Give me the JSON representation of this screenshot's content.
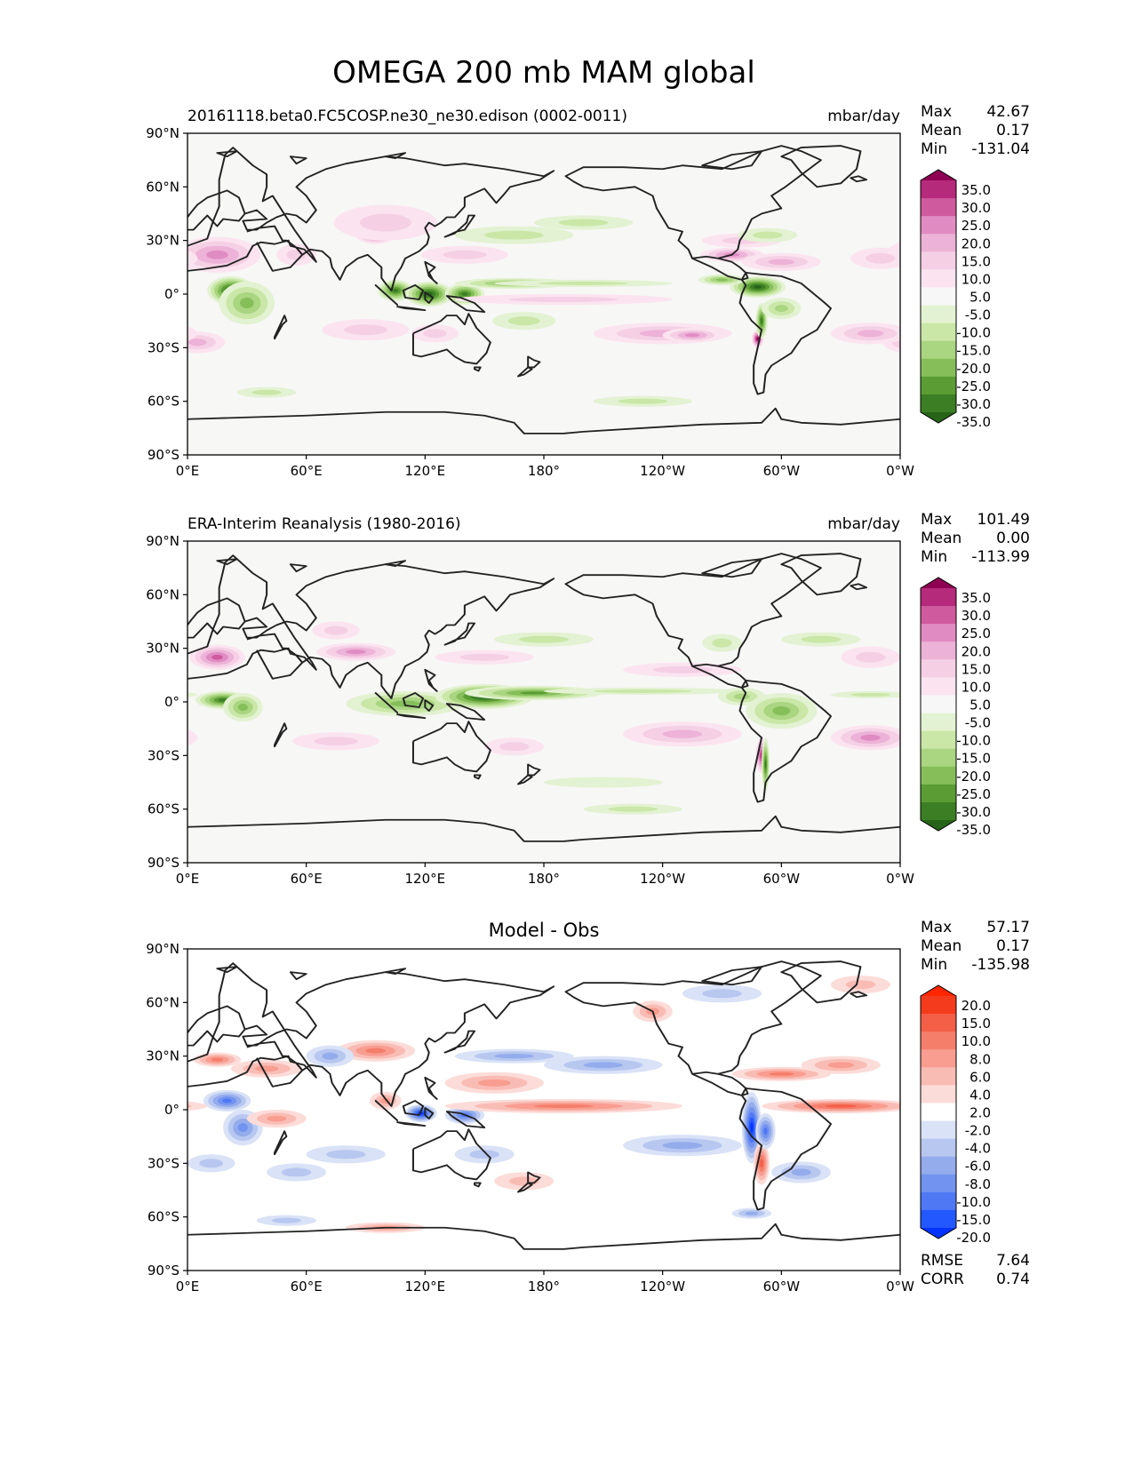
{
  "figure_title": "OMEGA 200 mb MAM global",
  "colors": {
    "land": "#f7f7f6",
    "coast": "#222222",
    "prgn": [
      "#276419",
      "#3c7e24",
      "#5b9d34",
      "#86bf5a",
      "#aad581",
      "#cae7a8",
      "#e3f2d2",
      "#f7f7f7",
      "#fbe4f0",
      "#f5d0e5",
      "#edb2d7",
      "#e08cc3",
      "#cf5a9d",
      "#b52a7b",
      "#8e0152"
    ],
    "bwr": [
      "#0433ff",
      "#2458ff",
      "#4f78f5",
      "#7293ef",
      "#94acec",
      "#b7c7f0",
      "#d9e2f6",
      "#ffffff",
      "#fcdcd8",
      "#f9bcb4",
      "#f89d90",
      "#f57e6b",
      "#f45f47",
      "#f53b1d",
      "#ff2600"
    ]
  },
  "chart_data": [
    {
      "type": "heatmap",
      "panel": "test",
      "title": "20161118.beta0.FC5COSP.ne30_ne30.edison (0002-0011)",
      "units": "mbar/day",
      "stats": {
        "max_label": "Max",
        "max": "42.67",
        "mean_label": "Mean",
        "mean": "0.17",
        "min_label": "Min",
        "min": "-131.04"
      },
      "colorbar_levels": [
        "35.0",
        "30.0",
        "25.0",
        "20.0",
        "15.0",
        "10.0",
        "5.0",
        "-5.0",
        "-10.0",
        "-15.0",
        "-20.0",
        "-25.0",
        "-30.0",
        "-35.0"
      ],
      "xticks": [
        "0°E",
        "60°E",
        "120°E",
        "180°",
        "120°W",
        "60°W",
        "0°W"
      ],
      "yticks": [
        "90°N",
        "60°N",
        "30°N",
        "0°",
        "30°S",
        "60°S",
        "90°S"
      ],
      "x_range_deg": [
        0,
        360
      ],
      "y_range_deg": [
        -90,
        90
      ],
      "blobs": [
        {
          "lon": 20,
          "lat": 24,
          "rx": 14,
          "ry": 6,
          "v": 30
        },
        {
          "lon": 15,
          "lat": 22,
          "rx": 22,
          "ry": 10,
          "v": 18
        },
        {
          "lon": 55,
          "lat": 22,
          "rx": 10,
          "ry": 6,
          "v": 12
        },
        {
          "lon": 22,
          "lat": 2,
          "rx": 12,
          "ry": 8,
          "v": -35
        },
        {
          "lon": 30,
          "lat": -5,
          "rx": 14,
          "ry": 12,
          "v": -22
        },
        {
          "lon": 5,
          "lat": -27,
          "rx": 14,
          "ry": 6,
          "v": 16
        },
        {
          "lon": 95,
          "lat": 33,
          "rx": 10,
          "ry": 5,
          "v": 26
        },
        {
          "lon": 100,
          "lat": 40,
          "rx": 26,
          "ry": 10,
          "v": 10
        },
        {
          "lon": 140,
          "lat": 22,
          "rx": 22,
          "ry": 5,
          "v": 12
        },
        {
          "lon": 105,
          "lat": 2,
          "rx": 9,
          "ry": 6,
          "v": -30
        },
        {
          "lon": 122,
          "lat": 0,
          "rx": 12,
          "ry": 7,
          "v": -35
        },
        {
          "lon": 140,
          "lat": 0,
          "rx": 10,
          "ry": 6,
          "v": -30
        },
        {
          "lon": 165,
          "lat": 6,
          "rx": 30,
          "ry": 3,
          "v": -20
        },
        {
          "lon": 200,
          "lat": 6,
          "rx": 45,
          "ry": 2,
          "v": -12
        },
        {
          "lon": 190,
          "lat": -3,
          "rx": 55,
          "ry": 3,
          "v": 8
        },
        {
          "lon": 90,
          "lat": -20,
          "rx": 22,
          "ry": 6,
          "v": 12
        },
        {
          "lon": 125,
          "lat": -22,
          "rx": 12,
          "ry": 5,
          "v": 8
        },
        {
          "lon": 170,
          "lat": -15,
          "rx": 16,
          "ry": 5,
          "v": -10
        },
        {
          "lon": 240,
          "lat": -22,
          "rx": 35,
          "ry": 6,
          "v": 16
        },
        {
          "lon": 255,
          "lat": -23,
          "rx": 15,
          "ry": 4,
          "v": 22
        },
        {
          "lon": 288,
          "lat": -25,
          "rx": 3,
          "ry": 5,
          "v": 35
        },
        {
          "lon": 290,
          "lat": -15,
          "rx": 3,
          "ry": 10,
          "v": -30
        },
        {
          "lon": 288,
          "lat": 4,
          "rx": 14,
          "ry": 6,
          "v": -35
        },
        {
          "lon": 270,
          "lat": 8,
          "rx": 12,
          "ry": 3,
          "v": -20
        },
        {
          "lon": 300,
          "lat": -8,
          "rx": 10,
          "ry": 6,
          "v": -15
        },
        {
          "lon": 275,
          "lat": 22,
          "rx": 16,
          "ry": 4,
          "v": 18
        },
        {
          "lon": 300,
          "lat": 18,
          "rx": 20,
          "ry": 5,
          "v": 15
        },
        {
          "lon": 280,
          "lat": 30,
          "rx": 20,
          "ry": 4,
          "v": 12
        },
        {
          "lon": 345,
          "lat": -22,
          "rx": 20,
          "ry": 6,
          "v": 16
        },
        {
          "lon": 350,
          "lat": 20,
          "rx": 15,
          "ry": 6,
          "v": 12
        },
        {
          "lon": 165,
          "lat": 33,
          "rx": 30,
          "ry": 5,
          "v": -12
        },
        {
          "lon": 200,
          "lat": 40,
          "rx": 25,
          "ry": 4,
          "v": -8
        },
        {
          "lon": 293,
          "lat": 33,
          "rx": 15,
          "ry": 4,
          "v": -12
        },
        {
          "lon": 40,
          "lat": -55,
          "rx": 15,
          "ry": 3,
          "v": -8
        },
        {
          "lon": 230,
          "lat": -60,
          "rx": 25,
          "ry": 3,
          "v": -8
        }
      ]
    },
    {
      "type": "heatmap",
      "panel": "reference",
      "title": "ERA-Interim Reanalysis (1980-2016)",
      "units": "mbar/day",
      "stats": {
        "max_label": "Max",
        "max": "101.49",
        "mean_label": "Mean",
        "mean": "0.00",
        "min_label": "Min",
        "min": "-113.99"
      },
      "colorbar_levels": [
        "35.0",
        "30.0",
        "25.0",
        "20.0",
        "15.0",
        "10.0",
        "5.0",
        "-5.0",
        "-10.0",
        "-15.0",
        "-20.0",
        "-25.0",
        "-30.0",
        "-35.0"
      ],
      "xticks": [
        "0°E",
        "60°E",
        "120°E",
        "180°",
        "120°W",
        "60°W",
        "0°W"
      ],
      "yticks": [
        "90°N",
        "60°N",
        "30°N",
        "0°",
        "30°S",
        "60°S",
        "90°S"
      ],
      "x_range_deg": [
        0,
        360
      ],
      "y_range_deg": [
        -90,
        90
      ],
      "blobs": [
        {
          "lon": 15,
          "lat": 25,
          "rx": 14,
          "ry": 7,
          "v": 25
        },
        {
          "lon": 18,
          "lat": 1,
          "rx": 14,
          "ry": 5,
          "v": -30
        },
        {
          "lon": 28,
          "lat": -3,
          "rx": 10,
          "ry": 8,
          "v": -18
        },
        {
          "lon": 85,
          "lat": 28,
          "rx": 20,
          "ry": 5,
          "v": 20
        },
        {
          "lon": 75,
          "lat": 40,
          "rx": 12,
          "ry": 5,
          "v": 10
        },
        {
          "lon": 110,
          "lat": -1,
          "rx": 30,
          "ry": 7,
          "v": -20
        },
        {
          "lon": 150,
          "lat": 3,
          "rx": 25,
          "ry": 7,
          "v": -35
        },
        {
          "lon": 175,
          "lat": 5,
          "rx": 35,
          "ry": 4,
          "v": -25
        },
        {
          "lon": 230,
          "lat": 6,
          "rx": 50,
          "ry": 2,
          "v": -12
        },
        {
          "lon": 280,
          "lat": 3,
          "rx": 12,
          "ry": 5,
          "v": -15
        },
        {
          "lon": 300,
          "lat": -5,
          "rx": 18,
          "ry": 10,
          "v": -18
        },
        {
          "lon": 345,
          "lat": 4,
          "rx": 20,
          "ry": 2,
          "v": -12
        },
        {
          "lon": 290,
          "lat": -30,
          "rx": 3,
          "ry": 10,
          "v": 30
        },
        {
          "lon": 292,
          "lat": -35,
          "rx": 2,
          "ry": 15,
          "v": -30
        },
        {
          "lon": 75,
          "lat": -22,
          "rx": 22,
          "ry": 5,
          "v": 10
        },
        {
          "lon": 165,
          "lat": -25,
          "rx": 15,
          "ry": 5,
          "v": 12
        },
        {
          "lon": 250,
          "lat": -18,
          "rx": 30,
          "ry": 7,
          "v": 15
        },
        {
          "lon": 345,
          "lat": -20,
          "rx": 20,
          "ry": 7,
          "v": 18
        },
        {
          "lon": 345,
          "lat": 25,
          "rx": 15,
          "ry": 6,
          "v": 10
        },
        {
          "lon": 150,
          "lat": 25,
          "rx": 25,
          "ry": 4,
          "v": 10
        },
        {
          "lon": 250,
          "lat": 18,
          "rx": 30,
          "ry": 4,
          "v": 8
        },
        {
          "lon": 180,
          "lat": 35,
          "rx": 25,
          "ry": 4,
          "v": -10
        },
        {
          "lon": 270,
          "lat": 33,
          "rx": 10,
          "ry": 5,
          "v": -8
        },
        {
          "lon": 320,
          "lat": 35,
          "rx": 20,
          "ry": 4,
          "v": -8
        },
        {
          "lon": 210,
          "lat": -45,
          "rx": 30,
          "ry": 3,
          "v": -5
        },
        {
          "lon": 225,
          "lat": -60,
          "rx": 25,
          "ry": 3,
          "v": -8
        }
      ]
    },
    {
      "type": "heatmap",
      "panel": "difference",
      "title": "Model - Obs",
      "units": "",
      "stats": {
        "max_label": "Max",
        "max": "57.17",
        "mean_label": "Mean",
        "mean": "0.17",
        "min_label": "Min",
        "min": "-135.98"
      },
      "metrics": {
        "rmse_label": "RMSE",
        "rmse": "7.64",
        "corr_label": "CORR",
        "corr": "0.74"
      },
      "colorbar_levels": [
        "20.0",
        "15.0",
        "10.0",
        "8.0",
        "6.0",
        "4.0",
        "2.0",
        "-2.0",
        "-4.0",
        "-6.0",
        "-8.0",
        "-10.0",
        "-15.0",
        "-20.0"
      ],
      "xticks": [
        "0°E",
        "60°E",
        "120°E",
        "180°",
        "120°W",
        "60°W",
        "0°W"
      ],
      "yticks": [
        "90°N",
        "60°N",
        "30°N",
        "0°",
        "30°S",
        "60°S",
        "90°S"
      ],
      "x_range_deg": [
        0,
        360
      ],
      "y_range_deg": [
        -90,
        90
      ],
      "blobs": [
        {
          "lon": 15,
          "lat": 28,
          "rx": 12,
          "ry": 4,
          "v": 12
        },
        {
          "lon": 40,
          "lat": 23,
          "rx": 18,
          "ry": 5,
          "v": 10
        },
        {
          "lon": 20,
          "lat": 5,
          "rx": 12,
          "ry": 6,
          "v": -15
        },
        {
          "lon": 28,
          "lat": -10,
          "rx": 10,
          "ry": 10,
          "v": -12
        },
        {
          "lon": 45,
          "lat": -5,
          "rx": 15,
          "ry": 5,
          "v": 8
        },
        {
          "lon": 12,
          "lat": -30,
          "rx": 12,
          "ry": 5,
          "v": -6
        },
        {
          "lon": 55,
          "lat": -35,
          "rx": 15,
          "ry": 5,
          "v": -6
        },
        {
          "lon": 95,
          "lat": 33,
          "rx": 20,
          "ry": 6,
          "v": 12
        },
        {
          "lon": 72,
          "lat": 30,
          "rx": 12,
          "ry": 6,
          "v": -10
        },
        {
          "lon": 118,
          "lat": -2,
          "rx": 8,
          "ry": 5,
          "v": -20
        },
        {
          "lon": 140,
          "lat": -3,
          "rx": 10,
          "ry": 5,
          "v": -15
        },
        {
          "lon": 100,
          "lat": 5,
          "rx": 8,
          "ry": 5,
          "v": 8
        },
        {
          "lon": 155,
          "lat": 15,
          "rx": 25,
          "ry": 6,
          "v": 10
        },
        {
          "lon": 165,
          "lat": 30,
          "rx": 30,
          "ry": 4,
          "v": -10
        },
        {
          "lon": 210,
          "lat": 25,
          "rx": 30,
          "ry": 5,
          "v": -8
        },
        {
          "lon": 190,
          "lat": 2,
          "rx": 60,
          "ry": 4,
          "v": 12
        },
        {
          "lon": 250,
          "lat": -20,
          "rx": 30,
          "ry": 6,
          "v": -8
        },
        {
          "lon": 285,
          "lat": -10,
          "rx": 5,
          "ry": 20,
          "v": -20
        },
        {
          "lon": 290,
          "lat": -30,
          "rx": 4,
          "ry": 12,
          "v": 14
        },
        {
          "lon": 292,
          "lat": -12,
          "rx": 5,
          "ry": 10,
          "v": -15
        },
        {
          "lon": 330,
          "lat": 2,
          "rx": 40,
          "ry": 4,
          "v": 14
        },
        {
          "lon": 300,
          "lat": 20,
          "rx": 25,
          "ry": 4,
          "v": 12
        },
        {
          "lon": 330,
          "lat": 25,
          "rx": 20,
          "ry": 5,
          "v": 8
        },
        {
          "lon": 310,
          "lat": -35,
          "rx": 15,
          "ry": 6,
          "v": -8
        },
        {
          "lon": 150,
          "lat": -25,
          "rx": 15,
          "ry": 5,
          "v": -6
        },
        {
          "lon": 170,
          "lat": -40,
          "rx": 15,
          "ry": 5,
          "v": 6
        },
        {
          "lon": 80,
          "lat": -25,
          "rx": 20,
          "ry": 5,
          "v": -6
        },
        {
          "lon": 100,
          "lat": -66,
          "rx": 20,
          "ry": 3,
          "v": 8
        },
        {
          "lon": 50,
          "lat": -62,
          "rx": 15,
          "ry": 3,
          "v": -6
        },
        {
          "lon": 285,
          "lat": -58,
          "rx": 10,
          "ry": 3,
          "v": -10
        },
        {
          "lon": 235,
          "lat": 55,
          "rx": 10,
          "ry": 6,
          "v": 8
        },
        {
          "lon": 340,
          "lat": 70,
          "rx": 15,
          "ry": 5,
          "v": 6
        },
        {
          "lon": 270,
          "lat": 65,
          "rx": 20,
          "ry": 5,
          "v": -5
        }
      ]
    }
  ]
}
